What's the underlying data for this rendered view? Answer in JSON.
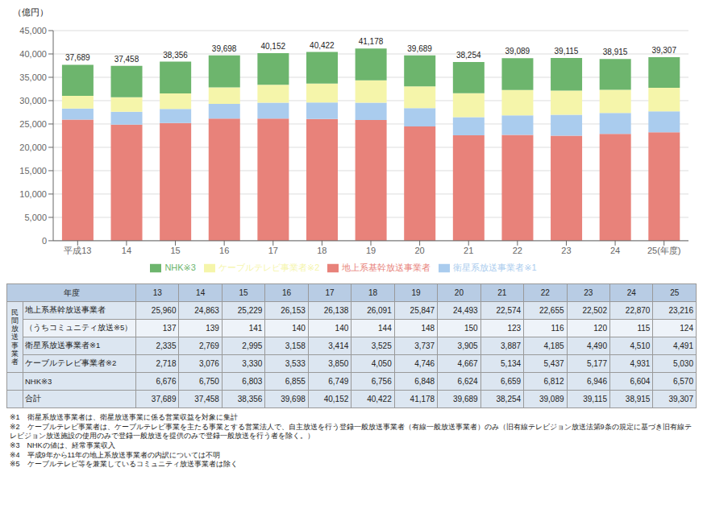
{
  "chart_data": {
    "type": "bar",
    "stacked": true,
    "ylabel": "（億円）",
    "categories": [
      "平成13",
      "14",
      "15",
      "16",
      "17",
      "18",
      "19",
      "20",
      "21",
      "22",
      "23",
      "24",
      "25(年度)"
    ],
    "series": [
      {
        "name": "地上系基幹放送事業者",
        "color": "#e8827a",
        "values": [
          25960,
          24863,
          25229,
          26153,
          26138,
          26091,
          25847,
          24493,
          22574,
          22655,
          22502,
          22870,
          23216
        ]
      },
      {
        "name": "衛星系放送事業者※1",
        "color": "#aaccee",
        "values": [
          2335,
          2769,
          2995,
          3158,
          3414,
          3525,
          3737,
          3905,
          3887,
          4185,
          4490,
          4510,
          4491
        ]
      },
      {
        "name": "ケーブルテレビ事業者※2",
        "color": "#f5f5aa",
        "values": [
          2718,
          3076,
          3330,
          3533,
          3850,
          4050,
          4746,
          4667,
          5134,
          5437,
          5177,
          4931,
          5030
        ]
      },
      {
        "name": "NHK※3",
        "color": "#6db56d",
        "values": [
          6676,
          6750,
          6803,
          6855,
          6749,
          6756,
          6848,
          6624,
          6659,
          6812,
          6946,
          6604,
          6570
        ]
      }
    ],
    "totals": {
      "values": [
        37689,
        37458,
        38356,
        39698,
        40152,
        40422,
        41178,
        39689,
        38254,
        39089,
        39115,
        38915,
        39307
      ],
      "value_labels": [
        "37,689",
        "37,458",
        "38,356",
        "39,698",
        "40,152",
        "40,422",
        "41,178",
        "39,689",
        "38,254",
        "39,089",
        "39,115",
        "38,915",
        "39,307"
      ]
    },
    "ylim": [
      0,
      45000
    ],
    "yticks": [
      0,
      {
        "value": 5000,
        "label": "5,000"
      },
      {
        "value": 10000,
        "label": "10,000"
      },
      {
        "value": 15000,
        "label": "15,000"
      },
      {
        "value": 20000,
        "label": "20,000"
      },
      {
        "value": 25000,
        "label": "25,000"
      },
      {
        "value": 30000,
        "label": "30,000"
      },
      {
        "value": 35000,
        "label": "35,000"
      },
      {
        "value": 40000,
        "label": "40,000"
      },
      {
        "value": 45000,
        "label": "45,000"
      }
    ],
    "grid": true,
    "legend": "bottom",
    "table": {
      "header": "年度",
      "header_color": "#b8cce4",
      "columns": [
        "13",
        "14",
        "15",
        "16",
        "17",
        "18",
        "19",
        "20",
        "21",
        "22",
        "23",
        "24",
        "25"
      ],
      "group_label": "民\n間\n放\n送\n事\n業\n者",
      "rows": [
        {
          "label": "地上系基幹放送事業者",
          "in_group": true,
          "color": "#dce6f1",
          "values": [
            25960,
            24863,
            25229,
            26153,
            26138,
            26091,
            25847,
            24493,
            22574,
            22655,
            22502,
            22870,
            23216
          ],
          "value_labels": [
            "25,960",
            "24,863",
            "25,229",
            "26,153",
            "26,138",
            "26,091",
            "25,847",
            "24,493",
            "22,574",
            "22,655",
            "22,502",
            "22,870",
            "23,216"
          ]
        },
        {
          "label": "（うちコミュニティ放送※5）",
          "in_group": true,
          "color": "#eef3f9",
          "values": [
            137,
            139,
            141,
            140,
            140,
            144,
            148,
            150,
            123,
            116,
            120,
            115,
            124
          ],
          "value_labels": [
            "137",
            "139",
            "141",
            "140",
            "140",
            "144",
            "148",
            "150",
            "123",
            "116",
            "120",
            "115",
            "124"
          ]
        },
        {
          "label": "衛星系放送事業者※1",
          "in_group": true,
          "color": "#dce6f1",
          "values": [
            2335,
            2769,
            2995,
            3158,
            3414,
            3525,
            3737,
            3905,
            3887,
            4185,
            4490,
            4510,
            4491
          ],
          "value_labels": [
            "2,335",
            "2,769",
            "2,995",
            "3,158",
            "3,414",
            "3,525",
            "3,737",
            "3,905",
            "3,887",
            "4,185",
            "4,490",
            "4,510",
            "4,491"
          ]
        },
        {
          "label": "ケーブルテレビ事業者※2",
          "in_group": true,
          "color": "#dce6f1",
          "values": [
            2718,
            3076,
            3330,
            3533,
            3850,
            4050,
            4746,
            4667,
            5134,
            5437,
            5177,
            4931,
            5030
          ],
          "value_labels": [
            "2,718",
            "3,076",
            "3,330",
            "3,533",
            "3,850",
            "4,050",
            "4,746",
            "4,667",
            "5,134",
            "5,437",
            "5,177",
            "4,931",
            "5,030"
          ]
        },
        {
          "label": "NHK※3",
          "in_group": false,
          "color": "#dce6f1",
          "values": [
            6676,
            6750,
            6803,
            6855,
            6749,
            6756,
            6848,
            6624,
            6659,
            6812,
            6946,
            6604,
            6570
          ],
          "value_labels": [
            "6,676",
            "6,750",
            "6,803",
            "6,855",
            "6,749",
            "6,756",
            "6,848",
            "6,624",
            "6,659",
            "6,812",
            "6,946",
            "6,604",
            "6,570"
          ]
        },
        {
          "label": "合計",
          "in_group": false,
          "color": "#dce6f1",
          "values": [
            37689,
            37458,
            38356,
            39698,
            40152,
            40422,
            41178,
            39689,
            38254,
            39089,
            39115,
            38915,
            39307
          ],
          "value_labels": [
            "37,689",
            "37,458",
            "38,356",
            "39,698",
            "40,152",
            "40,422",
            "41,178",
            "39,689",
            "38,254",
            "39,089",
            "39,115",
            "38,915",
            "39,307"
          ]
        }
      ]
    },
    "annotations": [
      "※1　衛星系放送事業者は、衛星放送事業に係る営業収益を対象に集計",
      "※2　ケーブルテレビ事業者は、ケーブルテレビ事業を主たる事業とする営業法人で、自主放送を行う登録一般放送事業者（有線一般放送事業者）のみ（旧有線テレビジョン放送法第9条の規定に基づき旧有線テレビジョン放送施設の使用のみで登録一般放送を提供のみで登録一般放送を行う者を除く。）",
      "※3　NHKの値は、経常事業収入",
      "※4　平成9年から11年の地上系放送事業者の内訳については不明",
      "※5　ケーブルテレビ等を兼業しているコミュニティ放送事業者は除く"
    ]
  }
}
